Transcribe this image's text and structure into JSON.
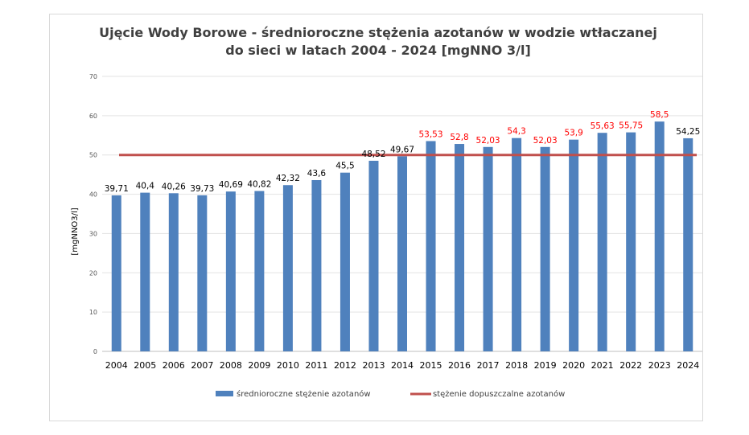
{
  "chart_data": {
    "type": "bar",
    "title_lines": [
      "Ujęcie Wody Borowe - średnioroczne stężenia azotanów w wodzie wtłaczanej",
      "do sieci w latach 2004 - 2024 [mgNNO 3/l]"
    ],
    "xlabel": "",
    "ylabel": "[mgNNO3/l]",
    "ylim": [
      0,
      70
    ],
    "yticks": [
      0,
      10,
      20,
      30,
      40,
      50,
      60,
      70
    ],
    "grid": true,
    "legend_position": "bottom",
    "categories": [
      "2004",
      "2005",
      "2006",
      "2007",
      "2008",
      "2009",
      "2010",
      "2011",
      "2012",
      "2013",
      "2014",
      "2015",
      "2016",
      "2017",
      "2018",
      "2019",
      "2020",
      "2021",
      "2022",
      "2023",
      "2024"
    ],
    "series": [
      {
        "name": "średnioroczne stężenie azotanów",
        "kind": "bar",
        "color": "#4f81bd",
        "values": [
          39.71,
          40.4,
          40.26,
          39.73,
          40.69,
          40.82,
          42.32,
          43.6,
          45.5,
          48.52,
          49.67,
          53.53,
          52.8,
          52.03,
          54.3,
          52.03,
          53.9,
          55.63,
          55.75,
          58.5,
          54.25
        ],
        "labels": [
          "39,71",
          "40,4",
          "40,26",
          "39,73",
          "40,69",
          "40,82",
          "42,32",
          "43,6",
          "45,5",
          "48,52",
          "49,67",
          "53,53",
          "52,8",
          "52,03",
          "54,3",
          "52,03",
          "53,9",
          "55,63",
          "55,75",
          "58,5",
          "54,25"
        ],
        "label_colors": [
          "#000000",
          "#000000",
          "#000000",
          "#000000",
          "#000000",
          "#000000",
          "#000000",
          "#000000",
          "#000000",
          "#000000",
          "#000000",
          "#ff0000",
          "#ff0000",
          "#ff0000",
          "#ff0000",
          "#ff0000",
          "#ff0000",
          "#ff0000",
          "#ff0000",
          "#ff0000",
          "#000000"
        ]
      },
      {
        "name": "stężenie dopuszczalne azotanów",
        "kind": "line",
        "color": "#c0504d",
        "values": [
          50,
          50,
          50,
          50,
          50,
          50,
          50,
          50,
          50,
          50,
          50,
          50,
          50,
          50,
          50,
          50,
          50,
          50,
          50,
          50,
          50
        ]
      }
    ]
  }
}
